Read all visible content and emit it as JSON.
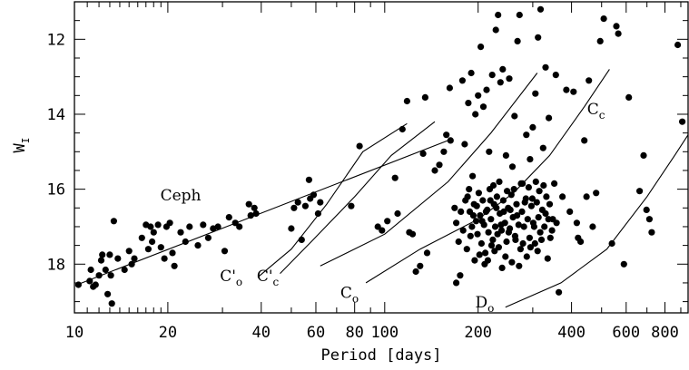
{
  "chart_data": {
    "type": "scatter",
    "xscale": "log",
    "xlim": [
      10,
      950
    ],
    "ylim": [
      19.3,
      11.0
    ],
    "y_inverted": true,
    "xlabel": "Period [days]",
    "ylabel": "W",
    "ylabel_sub": "I",
    "grid": false,
    "xticks": [
      {
        "v": 10,
        "label": "10"
      },
      {
        "v": 20,
        "label": "20"
      },
      {
        "v": 40,
        "label": "40"
      },
      {
        "v": 60,
        "label": "60"
      },
      {
        "v": 80,
        "label": "80"
      },
      {
        "v": 100,
        "label": "100"
      },
      {
        "v": 200,
        "label": "200"
      },
      {
        "v": 400,
        "label": "400"
      },
      {
        "v": 600,
        "label": "600"
      },
      {
        "v": 800,
        "label": "800"
      }
    ],
    "yticks": [
      {
        "v": 12,
        "label": "12"
      },
      {
        "v": 14,
        "label": "14"
      },
      {
        "v": 16,
        "label": "16"
      },
      {
        "v": 18,
        "label": "18"
      }
    ],
    "lines": [
      {
        "name": "Ceph",
        "sub": "",
        "points": [
          [
            10.2,
            18.55
          ],
          [
            160,
            14.7
          ]
        ],
        "label_at": [
          22,
          16.3
        ]
      },
      {
        "name": "C'",
        "sub": "o",
        "points": [
          [
            39,
            18.35
          ],
          [
            50,
            17.6
          ],
          [
            65,
            16.4
          ],
          [
            85,
            15.0
          ],
          [
            118,
            14.25
          ]
        ],
        "label_at": [
          32,
          18.45
        ]
      },
      {
        "name": "C'",
        "sub": "c",
        "points": [
          [
            46,
            18.25
          ],
          [
            58,
            17.4
          ],
          [
            80,
            16.2
          ],
          [
            105,
            15.1
          ],
          [
            145,
            14.2
          ]
        ],
        "label_at": [
          42,
          18.45
        ]
      },
      {
        "name": "C",
        "sub": "o",
        "points": [
          [
            62,
            18.05
          ],
          [
            100,
            17.2
          ],
          [
            160,
            15.8
          ],
          [
            220,
            14.5
          ],
          [
            310,
            12.9
          ]
        ],
        "label_at": [
          77,
          18.9
        ]
      },
      {
        "name": "C",
        "sub": "c",
        "points": [
          [
            87,
            18.5
          ],
          [
            130,
            17.6
          ],
          [
            200,
            16.8
          ],
          [
            260,
            16.1
          ],
          [
            340,
            15.1
          ],
          [
            440,
            13.8
          ],
          [
            530,
            12.8
          ]
        ],
        "label_at": [
          480,
          14.0
        ]
      },
      {
        "name": "D",
        "sub": "o",
        "points": [
          [
            245,
            19.15
          ],
          [
            370,
            18.5
          ],
          [
            520,
            17.6
          ],
          [
            700,
            16.2
          ],
          [
            860,
            15.1
          ],
          [
            950,
            14.55
          ]
        ],
        "label_at": [
          210,
          19.15
        ]
      }
    ],
    "points": [
      [
        10.3,
        18.55
      ],
      [
        11.2,
        18.45
      ],
      [
        11.3,
        18.15
      ],
      [
        11.5,
        18.6
      ],
      [
        11.7,
        18.55
      ],
      [
        12.0,
        18.3
      ],
      [
        12.2,
        17.9
      ],
      [
        12.3,
        17.75
      ],
      [
        12.6,
        18.15
      ],
      [
        12.8,
        18.8
      ],
      [
        13.0,
        17.75
      ],
      [
        13.1,
        18.3
      ],
      [
        13.2,
        19.05
      ],
      [
        13.4,
        16.85
      ],
      [
        13.8,
        17.85
      ],
      [
        14.5,
        18.15
      ],
      [
        15.0,
        17.65
      ],
      [
        15.3,
        18.0
      ],
      [
        15.6,
        17.85
      ],
      [
        16.5,
        17.3
      ],
      [
        17.0,
        16.95
      ],
      [
        17.3,
        17.6
      ],
      [
        17.6,
        17.0
      ],
      [
        17.8,
        17.4
      ],
      [
        18.0,
        17.15
      ],
      [
        18.6,
        16.95
      ],
      [
        19.0,
        17.55
      ],
      [
        19.5,
        17.85
      ],
      [
        19.8,
        17.0
      ],
      [
        20.3,
        16.9
      ],
      [
        20.7,
        17.7
      ],
      [
        21.0,
        18.05
      ],
      [
        22.0,
        17.15
      ],
      [
        22.8,
        17.4
      ],
      [
        23.5,
        17.0
      ],
      [
        25.0,
        17.5
      ],
      [
        26.0,
        16.95
      ],
      [
        27.0,
        17.3
      ],
      [
        28.0,
        17.05
      ],
      [
        29.0,
        17.0
      ],
      [
        30.5,
        17.65
      ],
      [
        31.5,
        16.75
      ],
      [
        33.0,
        16.9
      ],
      [
        34.0,
        17.0
      ],
      [
        36.5,
        16.4
      ],
      [
        37.0,
        16.7
      ],
      [
        38.0,
        16.5
      ],
      [
        38.5,
        16.65
      ],
      [
        50.0,
        17.05
      ],
      [
        51.0,
        16.5
      ],
      [
        52.5,
        16.35
      ],
      [
        54.0,
        17.35
      ],
      [
        55.5,
        16.45
      ],
      [
        57.0,
        15.75
      ],
      [
        57.5,
        16.25
      ],
      [
        59.0,
        16.15
      ],
      [
        61.0,
        16.65
      ],
      [
        62.0,
        16.35
      ],
      [
        78.0,
        16.45
      ],
      [
        83.0,
        14.85
      ],
      [
        95.0,
        17.0
      ],
      [
        98.0,
        17.1
      ],
      [
        102.0,
        16.85
      ],
      [
        108.0,
        15.7
      ],
      [
        110.0,
        16.65
      ],
      [
        114.0,
        14.4
      ],
      [
        118.0,
        13.65
      ],
      [
        120.0,
        17.15
      ],
      [
        123.0,
        17.2
      ],
      [
        126.0,
        18.2
      ],
      [
        130.0,
        18.05
      ],
      [
        133.0,
        15.05
      ],
      [
        135.0,
        13.55
      ],
      [
        137.0,
        17.7
      ],
      [
        145.0,
        15.5
      ],
      [
        150.0,
        15.35
      ],
      [
        155.0,
        15.0
      ],
      [
        158.0,
        14.55
      ],
      [
        162.0,
        13.3
      ],
      [
        163.0,
        14.7
      ],
      [
        168.0,
        16.5
      ],
      [
        170.0,
        18.5
      ],
      [
        175.0,
        18.3
      ],
      [
        178.0,
        13.1
      ],
      [
        181.0,
        14.8
      ],
      [
        186.0,
        13.7
      ],
      [
        190.0,
        12.9
      ],
      [
        192.0,
        15.65
      ],
      [
        196.0,
        14.0
      ],
      [
        200.0,
        13.5
      ],
      [
        204.0,
        12.2
      ],
      [
        208.0,
        13.8
      ],
      [
        213.0,
        13.35
      ],
      [
        217.0,
        15.0
      ],
      [
        222.0,
        12.95
      ],
      [
        228.0,
        11.75
      ],
      [
        232.0,
        11.35
      ],
      [
        236.0,
        13.15
      ],
      [
        240.0,
        12.8
      ],
      [
        246.0,
        15.1
      ],
      [
        252.0,
        13.05
      ],
      [
        258.0,
        15.4
      ],
      [
        262.0,
        14.05
      ],
      [
        268.0,
        12.05
      ],
      [
        272.0,
        11.35
      ],
      [
        278.0,
        15.85
      ],
      [
        286.0,
        14.55
      ],
      [
        294.0,
        15.2
      ],
      [
        300.0,
        14.35
      ],
      [
        306.0,
        13.45
      ],
      [
        312.0,
        11.95
      ],
      [
        318.0,
        11.2
      ],
      [
        324.0,
        14.9
      ],
      [
        330.0,
        12.75
      ],
      [
        338.0,
        14.1
      ],
      [
        348.0,
        16.8
      ],
      [
        356.0,
        12.95
      ],
      [
        364.0,
        18.75
      ],
      [
        374.0,
        16.2
      ],
      [
        385.0,
        13.35
      ],
      [
        395.0,
        16.6
      ],
      [
        406.0,
        13.4
      ],
      [
        416.0,
        16.9
      ],
      [
        428.0,
        17.4
      ],
      [
        440.0,
        14.7
      ],
      [
        455.0,
        13.1
      ],
      [
        468.0,
        17.0
      ],
      [
        480.0,
        16.1
      ],
      [
        495.0,
        12.05
      ],
      [
        508.0,
        11.45
      ],
      [
        540.0,
        17.45
      ],
      [
        558.0,
        11.65
      ],
      [
        566.0,
        11.85
      ],
      [
        590.0,
        18.0
      ],
      [
        612.0,
        13.55
      ],
      [
        663.0,
        16.05
      ],
      [
        683.0,
        15.1
      ],
      [
        698.0,
        16.55
      ],
      [
        713.0,
        16.8
      ],
      [
        725.0,
        17.15
      ],
      [
        880.0,
        12.15
      ],
      [
        910.0,
        14.2
      ],
      [
        420.0,
        17.3
      ],
      [
        447.0,
        16.2
      ],
      [
        185.0,
        16.2
      ],
      [
        188.0,
        16.6
      ],
      [
        191.0,
        17.0
      ],
      [
        194.0,
        16.4
      ],
      [
        197.0,
        16.85
      ],
      [
        199.0,
        17.2
      ],
      [
        201.0,
        16.1
      ],
      [
        203.0,
        16.7
      ],
      [
        205.0,
        17.45
      ],
      [
        207.0,
        16.3
      ],
      [
        209.0,
        16.95
      ],
      [
        211.0,
        17.7
      ],
      [
        214.0,
        16.55
      ],
      [
        216.0,
        17.15
      ],
      [
        218.0,
        16.0
      ],
      [
        220.0,
        16.8
      ],
      [
        223.0,
        17.35
      ],
      [
        225.0,
        16.4
      ],
      [
        227.0,
        17.0
      ],
      [
        230.0,
        16.2
      ],
      [
        233.0,
        17.55
      ],
      [
        235.0,
        16.65
      ],
      [
        238.0,
        17.1
      ],
      [
        241.0,
        16.3
      ],
      [
        244.0,
        16.9
      ],
      [
        247.0,
        17.4
      ],
      [
        250.0,
        16.5
      ],
      [
        253.0,
        17.05
      ],
      [
        256.0,
        16.15
      ],
      [
        259.0,
        16.75
      ],
      [
        263.0,
        17.25
      ],
      [
        266.0,
        16.4
      ],
      [
        270.0,
        16.95
      ],
      [
        274.0,
        17.6
      ],
      [
        277.0,
        16.6
      ],
      [
        281.0,
        17.0
      ],
      [
        285.0,
        16.25
      ],
      [
        289.0,
        16.8
      ],
      [
        293.0,
        17.3
      ],
      [
        297.0,
        16.45
      ],
      [
        301.0,
        16.9
      ],
      [
        305.0,
        17.45
      ],
      [
        309.0,
        16.35
      ],
      [
        313.0,
        16.75
      ],
      [
        317.0,
        17.15
      ],
      [
        322.0,
        16.55
      ],
      [
        327.0,
        17.0
      ],
      [
        332.0,
        16.2
      ],
      [
        337.0,
        16.8
      ],
      [
        342.0,
        17.3
      ],
      [
        170.0,
        16.9
      ],
      [
        173.0,
        17.4
      ],
      [
        176.0,
        16.6
      ],
      [
        179.0,
        17.1
      ],
      [
        182.0,
        16.3
      ],
      [
        184.0,
        17.6
      ],
      [
        187.0,
        16.0
      ],
      [
        189.0,
        17.25
      ],
      [
        193.0,
        16.7
      ],
      [
        195.0,
        17.9
      ],
      [
        198.0,
        16.45
      ],
      [
        202.0,
        17.75
      ],
      [
        206.0,
        16.85
      ],
      [
        210.0,
        18.0
      ],
      [
        212.0,
        16.6
      ],
      [
        215.0,
        17.9
      ],
      [
        219.0,
        16.3
      ],
      [
        221.0,
        17.5
      ],
      [
        224.0,
        15.9
      ],
      [
        226.0,
        17.65
      ],
      [
        229.0,
        16.5
      ],
      [
        231.0,
        17.2
      ],
      [
        234.0,
        15.8
      ],
      [
        237.0,
        16.95
      ],
      [
        239.0,
        18.1
      ],
      [
        242.0,
        16.6
      ],
      [
        245.0,
        17.8
      ],
      [
        248.0,
        16.05
      ],
      [
        251.0,
        17.15
      ],
      [
        254.0,
        16.55
      ],
      [
        257.0,
        17.95
      ],
      [
        261.0,
        16.0
      ],
      [
        264.0,
        17.35
      ],
      [
        267.0,
        16.7
      ],
      [
        271.0,
        18.05
      ],
      [
        275.0,
        15.85
      ],
      [
        279.0,
        17.45
      ],
      [
        283.0,
        16.35
      ],
      [
        287.0,
        17.8
      ],
      [
        291.0,
        15.95
      ],
      [
        295.0,
        17.55
      ],
      [
        299.0,
        16.25
      ],
      [
        303.0,
        17.0
      ],
      [
        307.0,
        15.8
      ],
      [
        311.0,
        17.65
      ],
      [
        315.0,
        16.05
      ],
      [
        320.0,
        17.35
      ],
      [
        325.0,
        15.9
      ],
      [
        330.0,
        16.65
      ],
      [
        335.0,
        17.85
      ],
      [
        340.0,
        16.4
      ],
      [
        346.0,
        17.1
      ],
      [
        352.0,
        15.85
      ],
      [
        358.0,
        16.9
      ]
    ]
  }
}
